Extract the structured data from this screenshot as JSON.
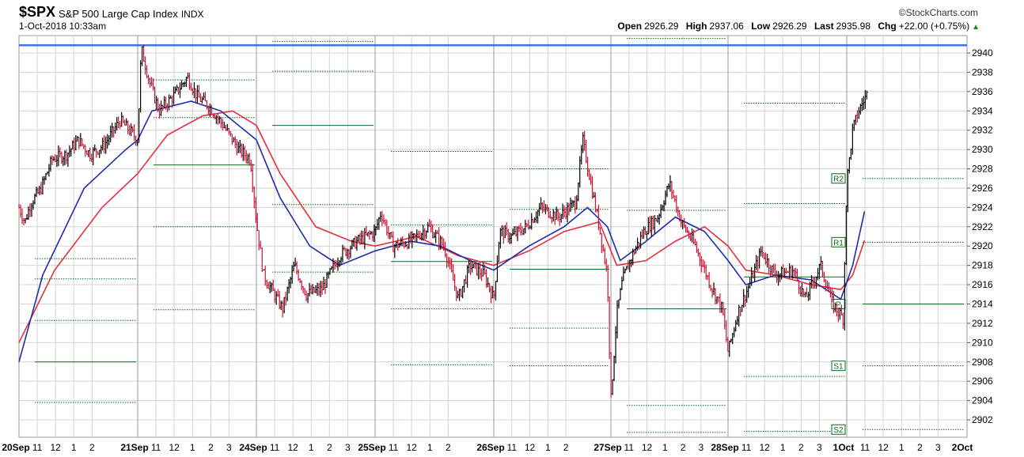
{
  "header": {
    "symbol": "$SPX",
    "description": "S&P 500 Large Cap Index",
    "exchange": "INDX",
    "datetime": "1-Oct-2018 10:33am",
    "watermark": "©StockCharts.com",
    "open_label": "Open",
    "open": "2926.29",
    "high_label": "High",
    "high": "2937.06",
    "low_label": "Low",
    "low": "2926.29",
    "last_label": "Last",
    "last": "2935.98",
    "chg_label": "Chg",
    "chg": "+22.00 (+0.75%)"
  },
  "chart_data": {
    "type": "line",
    "title": "$SPX S&P 500 Large Cap Index INDX",
    "ylim": [
      2900.2,
      2941.8
    ],
    "yticks": [
      2902,
      2904,
      2906,
      2908,
      2910,
      2912,
      2914,
      2916,
      2918,
      2920,
      2922,
      2924,
      2926,
      2928,
      2930,
      2932,
      2934,
      2936,
      2938,
      2940
    ],
    "resistance_line": 2940.8,
    "days": [
      {
        "label": "20Sep",
        "ticks": [
          "11",
          "12",
          "1",
          "2"
        ]
      },
      {
        "label": "21Sep",
        "ticks": [
          "11",
          "12",
          "1",
          "2",
          "3"
        ]
      },
      {
        "label": "24Sep",
        "ticks": [
          "11",
          "12",
          "1",
          "2",
          "3"
        ]
      },
      {
        "label": "25Sep",
        "ticks": [
          "11",
          "12",
          "1",
          "2"
        ]
      },
      {
        "label": "26Sep",
        "ticks": [
          "11",
          "12",
          "1",
          "2"
        ]
      },
      {
        "label": "27Sep",
        "ticks": [
          "11",
          "12",
          "1",
          "2",
          "3"
        ]
      },
      {
        "label": "28Sep",
        "ticks": [
          "11",
          "12",
          "1",
          "2",
          "3"
        ]
      },
      {
        "label": "1Oct",
        "ticks": [
          "11",
          "12",
          "1",
          "2",
          "3"
        ]
      },
      {
        "label": "2Oct",
        "ticks": []
      }
    ],
    "pivot_labels": [
      "R2",
      "R1",
      "P",
      "S1",
      "S2"
    ],
    "pivots": [
      {
        "P": 2908.0,
        "R1": 2916.6,
        "R2": 2918.7,
        "S1": 2912.3,
        "S2": 2903.8
      },
      {
        "P": 2928.4,
        "R1": 2933.3,
        "R2": 2937.2,
        "S1": 2922.0,
        "S2": 2913.4
      },
      {
        "P": 2932.5,
        "R1": 2938.1,
        "R2": 2941.2,
        "S1": 2924.3,
        "S2": 2917.3
      },
      {
        "P": 2918.4,
        "R1": 2922.2,
        "R2": 2929.8,
        "S1": 2913.5,
        "S2": 2907.7
      },
      {
        "P": 2917.6,
        "R1": 2923.8,
        "R2": 2928.0,
        "S1": 2911.5,
        "S2": 2907.6
      },
      {
        "P": 2913.5,
        "R1": 2923.7,
        "R2": 2941.5,
        "S1": 2903.5,
        "S2": 2900.7
      },
      {
        "P": 2916.8,
        "R1": 2924.4,
        "R2": 2934.8,
        "S1": 2906.5,
        "S2": 2900.8
      },
      {
        "P": 2914.0,
        "R1": 2920.4,
        "R2": 2927.0,
        "S1": 2907.6,
        "S2": 2901.0
      }
    ],
    "price_path": [
      [
        0.0,
        2924.0
      ],
      [
        0.05,
        2922.5
      ],
      [
        0.1,
        2924.5
      ],
      [
        0.18,
        2925.8
      ],
      [
        0.28,
        2929.0
      ],
      [
        0.4,
        2929.5
      ],
      [
        0.5,
        2931.0
      ],
      [
        0.6,
        2929.5
      ],
      [
        0.72,
        2930.5
      ],
      [
        0.85,
        2933.0
      ],
      [
        0.93,
        2932.0
      ],
      [
        1.0,
        2931.0
      ],
      [
        1.03,
        2940.5
      ],
      [
        1.1,
        2937.0
      ],
      [
        1.18,
        2934.0
      ],
      [
        1.3,
        2935.5
      ],
      [
        1.42,
        2937.5
      ],
      [
        1.5,
        2935.5
      ],
      [
        1.6,
        2934.5
      ],
      [
        1.72,
        2932.5
      ],
      [
        1.85,
        2930.0
      ],
      [
        1.95,
        2929.0
      ],
      [
        2.0,
        2922.5
      ],
      [
        2.06,
        2917.0
      ],
      [
        2.15,
        2915.0
      ],
      [
        2.22,
        2913.5
      ],
      [
        2.32,
        2918.0
      ],
      [
        2.42,
        2915.0
      ],
      [
        2.55,
        2915.5
      ],
      [
        2.7,
        2919.0
      ],
      [
        2.85,
        2920.5
      ],
      [
        3.0,
        2921.5
      ],
      [
        3.05,
        2923.5
      ],
      [
        3.15,
        2920.0
      ],
      [
        3.3,
        2920.5
      ],
      [
        3.45,
        2922.0
      ],
      [
        3.58,
        2920.0
      ],
      [
        3.7,
        2914.5
      ],
      [
        3.8,
        2918.0
      ],
      [
        3.92,
        2917.0
      ],
      [
        4.0,
        2914.5
      ],
      [
        4.05,
        2921.5
      ],
      [
        4.15,
        2921.0
      ],
      [
        4.28,
        2922.0
      ],
      [
        4.4,
        2924.0
      ],
      [
        4.55,
        2923.0
      ],
      [
        4.7,
        2924.5
      ],
      [
        4.76,
        2931.0
      ],
      [
        4.82,
        2927.0
      ],
      [
        4.9,
        2922.0
      ],
      [
        4.97,
        2917.0
      ],
      [
        5.0,
        2904.0
      ],
      [
        5.05,
        2913.0
      ],
      [
        5.1,
        2916.5
      ],
      [
        5.18,
        2919.0
      ],
      [
        5.28,
        2921.5
      ],
      [
        5.4,
        2923.0
      ],
      [
        5.5,
        2926.5
      ],
      [
        5.6,
        2922.5
      ],
      [
        5.72,
        2920.0
      ],
      [
        5.85,
        2916.0
      ],
      [
        5.95,
        2913.5
      ],
      [
        6.0,
        2909.0
      ],
      [
        6.08,
        2913.0
      ],
      [
        6.18,
        2916.0
      ],
      [
        6.28,
        2919.5
      ],
      [
        6.4,
        2917.0
      ],
      [
        6.55,
        2917.5
      ],
      [
        6.65,
        2914.5
      ],
      [
        6.78,
        2918.0
      ],
      [
        6.88,
        2914.0
      ],
      [
        6.97,
        2912.5
      ],
      [
        7.0,
        2926.5
      ],
      [
        7.05,
        2932.0
      ],
      [
        7.1,
        2934.0
      ],
      [
        7.18,
        2936.0
      ]
    ],
    "ma_blue": [
      [
        0.0,
        2908.0
      ],
      [
        0.2,
        2917.0
      ],
      [
        0.55,
        2926.0
      ],
      [
        0.9,
        2930.0
      ],
      [
        1.0,
        2931.0
      ],
      [
        1.12,
        2934.0
      ],
      [
        1.45,
        2935.0
      ],
      [
        1.7,
        2934.0
      ],
      [
        2.0,
        2931.0
      ],
      [
        2.2,
        2925.0
      ],
      [
        2.45,
        2920.0
      ],
      [
        2.7,
        2918.0
      ],
      [
        3.0,
        2919.5
      ],
      [
        3.3,
        2920.5
      ],
      [
        3.55,
        2920.0
      ],
      [
        3.8,
        2918.5
      ],
      [
        4.0,
        2917.5
      ],
      [
        4.3,
        2920.0
      ],
      [
        4.6,
        2922.0
      ],
      [
        4.8,
        2924.0
      ],
      [
        4.97,
        2922.0
      ],
      [
        5.08,
        2918.5
      ],
      [
        5.3,
        2920.5
      ],
      [
        5.55,
        2923.0
      ],
      [
        5.8,
        2921.5
      ],
      [
        6.0,
        2918.5
      ],
      [
        6.15,
        2916.0
      ],
      [
        6.4,
        2917.0
      ],
      [
        6.7,
        2916.5
      ],
      [
        6.95,
        2914.5
      ],
      [
        7.05,
        2918.0
      ],
      [
        7.15,
        2923.6
      ]
    ],
    "ma_red": [
      [
        0.0,
        2910.0
      ],
      [
        0.3,
        2917.5
      ],
      [
        0.7,
        2924.0
      ],
      [
        1.0,
        2927.5
      ],
      [
        1.25,
        2931.5
      ],
      [
        1.55,
        2933.5
      ],
      [
        1.8,
        2934.0
      ],
      [
        2.0,
        2932.5
      ],
      [
        2.2,
        2927.5
      ],
      [
        2.5,
        2922.0
      ],
      [
        2.8,
        2920.5
      ],
      [
        3.0,
        2920.0
      ],
      [
        3.35,
        2921.0
      ],
      [
        3.7,
        2919.0
      ],
      [
        4.0,
        2918.0
      ],
      [
        4.3,
        2919.5
      ],
      [
        4.6,
        2921.5
      ],
      [
        4.9,
        2922.5
      ],
      [
        5.05,
        2918.0
      ],
      [
        5.3,
        2918.5
      ],
      [
        5.55,
        2920.5
      ],
      [
        5.8,
        2922.0
      ],
      [
        6.0,
        2920.0
      ],
      [
        6.15,
        2917.5
      ],
      [
        6.4,
        2917.0
      ],
      [
        6.7,
        2916.0
      ],
      [
        6.95,
        2915.5
      ],
      [
        7.05,
        2917.0
      ],
      [
        7.15,
        2920.6
      ]
    ],
    "colors": {
      "price": "#000000",
      "up": "#cc1133",
      "ma_blue": "#1c2fa8",
      "ma_red": "#e23040",
      "pivot": "#0a6a1a",
      "resistance": "#3a78e0",
      "grid": "#d4d4d4"
    }
  }
}
